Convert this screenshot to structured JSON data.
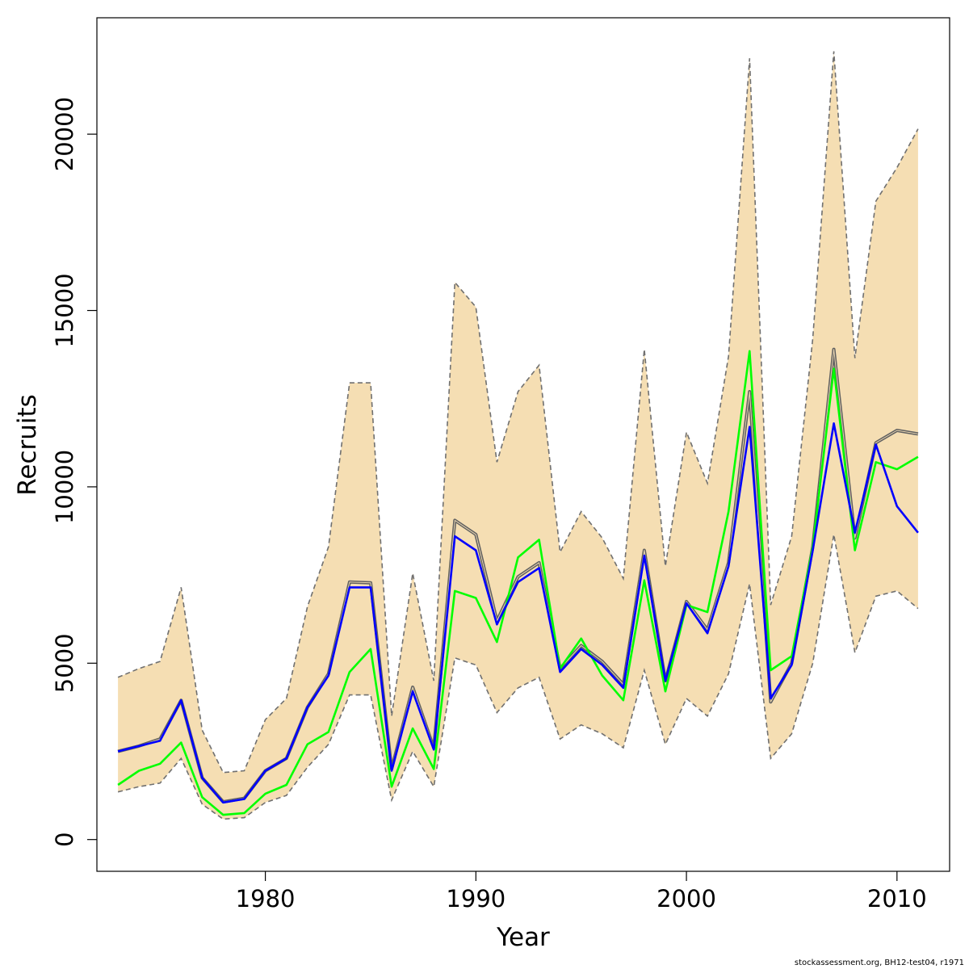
{
  "chart_data": {
    "type": "line",
    "xlabel": "Year",
    "ylabel": "Recruits",
    "xlim": [
      1972,
      2012.5
    ],
    "ylim": [
      -900,
      23300
    ],
    "xticks": [
      1980,
      1990,
      2000,
      2010
    ],
    "yticks": [
      0,
      5000,
      10000,
      15000,
      20000
    ],
    "x": [
      1973,
      1974,
      1975,
      1976,
      1977,
      1978,
      1979,
      1980,
      1981,
      1982,
      1983,
      1984,
      1985,
      1986,
      1987,
      1988,
      1989,
      1990,
      1991,
      1992,
      1993,
      1994,
      1995,
      1996,
      1997,
      1998,
      1999,
      2000,
      2001,
      2002,
      2003,
      2004,
      2005,
      2006,
      2007,
      2008,
      2009,
      2010,
      2011
    ],
    "band": {
      "name": "confidence interval",
      "color": "#f5deb3",
      "edge_color": "#707070",
      "upper": [
        4600,
        4850,
        5050,
        7150,
        3100,
        1900,
        1950,
        3400,
        4000,
        6600,
        8300,
        12950,
        12950,
        3500,
        7550,
        4500,
        15800,
        15100,
        10700,
        12700,
        13450,
        8150,
        9300,
        8550,
        7400,
        13900,
        7750,
        11550,
        10100,
        13700,
        22150,
        6650,
        8600,
        14200,
        22350,
        13650,
        18100,
        19050,
        20150
      ],
      "lower": [
        1350,
        1500,
        1600,
        2300,
        1000,
        580,
        620,
        1050,
        1250,
        2050,
        2700,
        4100,
        4100,
        1120,
        2500,
        1500,
        5150,
        4950,
        3600,
        4300,
        4600,
        2850,
        3250,
        3000,
        2600,
        4800,
        2700,
        4000,
        3500,
        4700,
        7250,
        2300,
        3000,
        5000,
        8650,
        5300,
        6900,
        7050,
        6550
      ]
    },
    "series": [
      {
        "name": "gray",
        "color": "#606060",
        "values": [
          2500,
          2650,
          2850,
          3950,
          1750,
          1070,
          1170,
          1950,
          2300,
          3750,
          4700,
          7300,
          7280,
          2000,
          4320,
          2600,
          9050,
          8650,
          6200,
          7450,
          7850,
          4850,
          5500,
          5050,
          4400,
          8200,
          4500,
          6750,
          5950,
          7850,
          12700,
          3900,
          5000,
          8300,
          13900,
          8550,
          11250,
          11600,
          11500
        ]
      },
      {
        "name": "green",
        "color": "#00ff00",
        "values": [
          1550,
          1950,
          2150,
          2750,
          1200,
          700,
          750,
          1300,
          1550,
          2700,
          3050,
          4750,
          5400,
          1500,
          3150,
          2000,
          7050,
          6850,
          5600,
          8000,
          8500,
          4850,
          5700,
          4650,
          3950,
          7350,
          4200,
          6650,
          6450,
          9300,
          13850,
          4800,
          5200,
          8300,
          13350,
          8200,
          10700,
          10500,
          10850
        ]
      },
      {
        "name": "blue",
        "color": "#0000ff",
        "values": [
          2500,
          2650,
          2800,
          3950,
          1750,
          1050,
          1150,
          1950,
          2300,
          3750,
          4650,
          7150,
          7150,
          1950,
          4200,
          2550,
          8600,
          8200,
          6100,
          7300,
          7700,
          4750,
          5400,
          4950,
          4300,
          8050,
          4500,
          6700,
          5850,
          7750,
          11700,
          4000,
          4950,
          8200,
          11800,
          8700,
          11200,
          9450,
          8700
        ]
      }
    ]
  },
  "footer_text": "stockassessment.org, BH12-test04, r1971"
}
